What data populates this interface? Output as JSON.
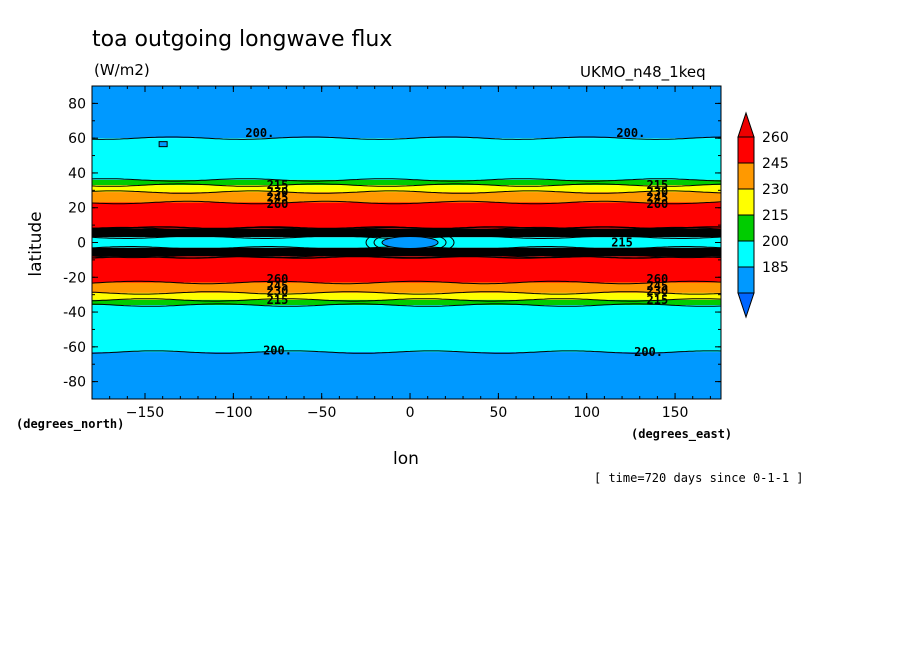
{
  "chart_data": {
    "type": "contour",
    "title": "toa outgoing longwave flux",
    "units": "(W/m2)",
    "dataset": "UKMO_n48_1keq",
    "xlabel": "lon",
    "ylabel": "latitude",
    "x_units": "(degrees_east)",
    "y_units": "(degrees_north)",
    "time_note": "[ time=720 days since 0-1-1 ]",
    "xlim": [
      -180,
      176
    ],
    "ylim": [
      -90,
      90
    ],
    "x_ticks": [
      -150,
      -100,
      -50,
      0,
      50,
      100,
      150
    ],
    "y_ticks": [
      80,
      60,
      40,
      20,
      0,
      -20,
      -40,
      -60,
      -80
    ],
    "levels": [
      185,
      200,
      215,
      230,
      245,
      260
    ],
    "colorbar": {
      "labels": [
        "260",
        "245",
        "230",
        "215",
        "200",
        "185"
      ],
      "colors": [
        "#ff0000",
        "#ff9900",
        "#ffff00",
        "#00cc00",
        "#00ffff",
        "#0099ff"
      ],
      "top_arrow_color": "#ee0000",
      "bottom_arrow_color": "#0066ff"
    },
    "bands": [
      {
        "lat_from": 90,
        "lat_to": 60,
        "level": "<200",
        "color": "#0099ff"
      },
      {
        "lat_from": 60,
        "lat_to": 36,
        "level": "200-215",
        "color": "#00ffff"
      },
      {
        "lat_from": 36,
        "lat_to": 33,
        "level": "215-230",
        "color": "#00cc00"
      },
      {
        "lat_from": 33,
        "lat_to": 29,
        "level": "230-245",
        "color": "#ffff00"
      },
      {
        "lat_from": 29,
        "lat_to": 23,
        "level": "245-260",
        "color": "#ff9900"
      },
      {
        "lat_from": 23,
        "lat_to": 8,
        "level": ">260",
        "color": "#ff0000"
      },
      {
        "lat_from": 8,
        "lat_to": 3,
        "level": "contour-dense",
        "color": "#000000"
      },
      {
        "lat_from": 3,
        "lat_to": -3,
        "level": "200-215",
        "color": "#00ffff"
      },
      {
        "lat_from": -3,
        "lat_to": -8,
        "level": "contour-dense",
        "color": "#000000"
      },
      {
        "lat_from": -8,
        "lat_to": -23,
        "level": ">260",
        "color": "#ff0000"
      },
      {
        "lat_from": -23,
        "lat_to": -29,
        "level": "245-260",
        "color": "#ff9900"
      },
      {
        "lat_from": -29,
        "lat_to": -33,
        "level": "230-245",
        "color": "#ffff00"
      },
      {
        "lat_from": -33,
        "lat_to": -36,
        "level": "215-230",
        "color": "#00cc00"
      },
      {
        "lat_from": -36,
        "lat_to": -63,
        "level": "200-215",
        "color": "#00ffff"
      },
      {
        "lat_from": -63,
        "lat_to": -90,
        "level": "<200",
        "color": "#0099ff"
      }
    ],
    "contour_labels": [
      {
        "text": "200.",
        "lon": -85,
        "lat": 63
      },
      {
        "text": "200.",
        "lon": 125,
        "lat": 63
      },
      {
        "text": "200.",
        "lon": -75,
        "lat": -62
      },
      {
        "text": "200.",
        "lon": 135,
        "lat": -63
      },
      {
        "text": "215",
        "lon": -75,
        "lat": 33
      },
      {
        "text": "230",
        "lon": -75,
        "lat": 29
      },
      {
        "text": "245",
        "lon": -75,
        "lat": 26
      },
      {
        "text": "260",
        "lon": -75,
        "lat": 22
      },
      {
        "text": "215",
        "lon": 140,
        "lat": 33
      },
      {
        "text": "230",
        "lon": 140,
        "lat": 29
      },
      {
        "text": "245",
        "lon": 140,
        "lat": 26
      },
      {
        "text": "260",
        "lon": 140,
        "lat": 22
      },
      {
        "text": "260",
        "lon": -75,
        "lat": -21
      },
      {
        "text": "245",
        "lon": -75,
        "lat": -25
      },
      {
        "text": "230",
        "lon": -75,
        "lat": -28
      },
      {
        "text": "215",
        "lon": -75,
        "lat": -33
      },
      {
        "text": "260",
        "lon": 140,
        "lat": -21
      },
      {
        "text": "245",
        "lon": 140,
        "lat": -25
      },
      {
        "text": "230",
        "lon": 140,
        "lat": -28
      },
      {
        "text": "215",
        "lon": 140,
        "lat": -33
      },
      {
        "text": "215",
        "lon": 120,
        "lat": 0
      }
    ],
    "features": {
      "equatorial_low_lon": 0,
      "equatorial_low_color": "#0099ff"
    }
  }
}
